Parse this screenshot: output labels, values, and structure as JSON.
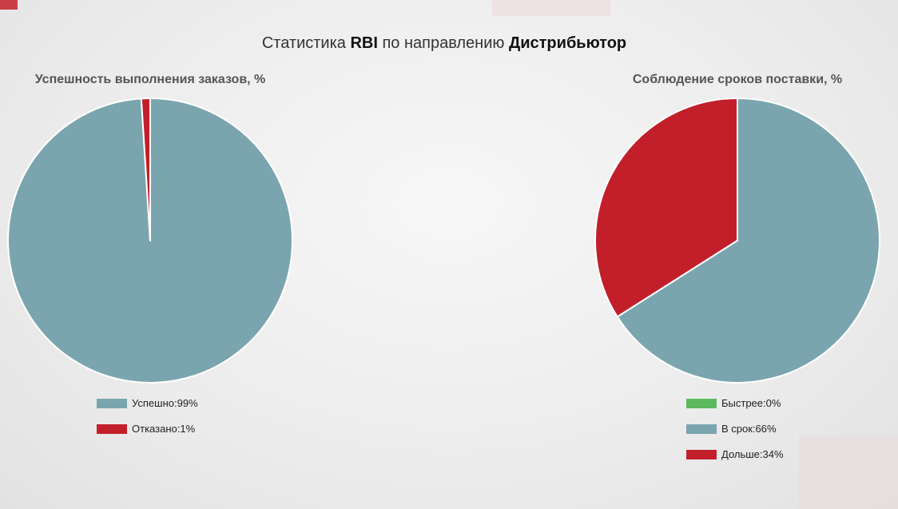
{
  "header": {
    "title_prefix": "Статистика",
    "metric": "RBI",
    "title_middle": "по направлению",
    "direction": "Дистрибьютор"
  },
  "chart_data": [
    {
      "type": "pie",
      "title": "Успешность выполнения заказов, %",
      "slices": [
        {
          "label": "Успешно:99%",
          "value": 99,
          "color": "#7ba5ae"
        },
        {
          "label": "Отказано:1%",
          "value": 1,
          "color": "#c21f2b"
        }
      ],
      "legend": "bottom"
    },
    {
      "type": "pie",
      "title": "Соблюдение сроков поставки, %",
      "slices": [
        {
          "label": "Быстрее:0%",
          "value": 0,
          "color": "#5cb85c"
        },
        {
          "label": "В срок:66%",
          "value": 66,
          "color": "#7ba5ae"
        },
        {
          "label": "Дольше:34%",
          "value": 34,
          "color": "#c21f2b"
        }
      ],
      "legend": "bottom"
    }
  ]
}
